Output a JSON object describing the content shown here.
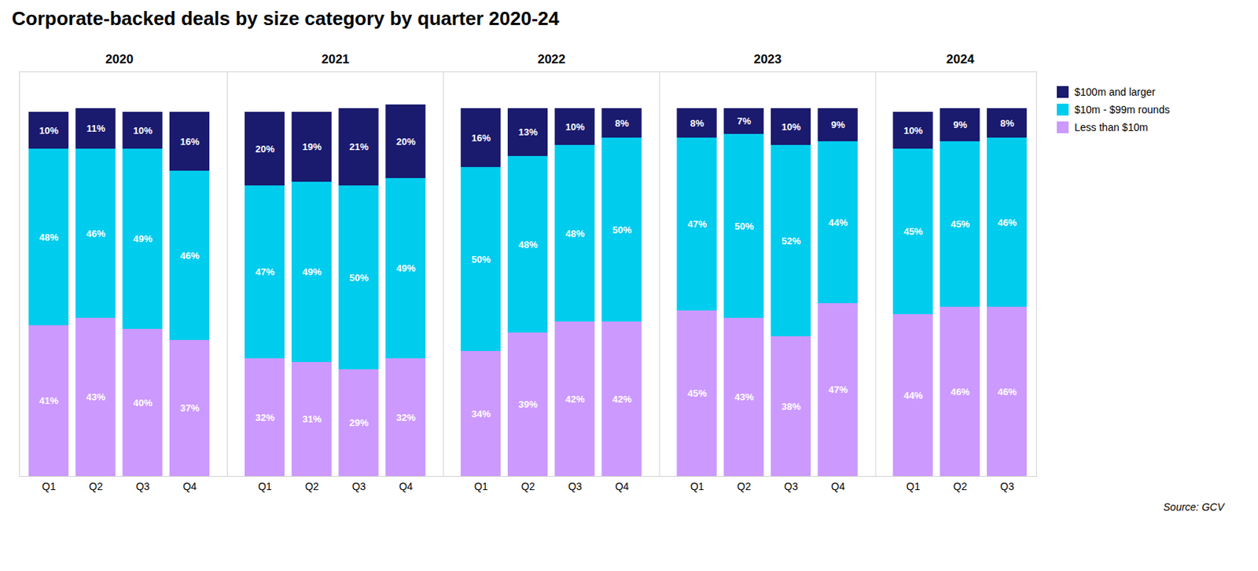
{
  "chart_data": {
    "type": "bar",
    "title": "Corporate-backed deals by size category by quarter 2020-24",
    "caption": "Source: GCV",
    "categories": [
      "Q1",
      "Q2",
      "Q3",
      "Q4",
      "Q1",
      "Q2",
      "Q3",
      "Q4",
      "Q1",
      "Q2",
      "Q3",
      "Q4",
      "Q1",
      "Q2",
      "Q3",
      "Q4",
      "Q1",
      "Q2",
      "Q3"
    ],
    "category_groups": [
      "2020",
      "2020",
      "2020",
      "2020",
      "2021",
      "2021",
      "2021",
      "2021",
      "2022",
      "2022",
      "2022",
      "2022",
      "2023",
      "2023",
      "2023",
      "2023",
      "2024",
      "2024",
      "2024"
    ],
    "series": [
      {
        "name": "Less than $10m",
        "color": "#cc99ff",
        "values": [
          41,
          43,
          40,
          37,
          32,
          31,
          29,
          32,
          34,
          39,
          42,
          42,
          45,
          43,
          38,
          47,
          44,
          46,
          46
        ],
        "value_labels": [
          "41%",
          "43%",
          "40%",
          "37%",
          "32%",
          "31%",
          "29%",
          "32%",
          "34%",
          "39%",
          "42%",
          "42%",
          "45%",
          "43%",
          "38%",
          "47%",
          "44%",
          "46%",
          "46%"
        ]
      },
      {
        "name": "$10m - $99m rounds",
        "color": "#00ccee",
        "values": [
          48,
          46,
          49,
          46,
          47,
          49,
          50,
          49,
          50,
          48,
          48,
          50,
          47,
          50,
          52,
          44,
          45,
          45,
          46
        ],
        "value_labels": [
          "48%",
          "46%",
          "49%",
          "46%",
          "47%",
          "49%",
          "50%",
          "49%",
          "50%",
          "48%",
          "48%",
          "50%",
          "47%",
          "50%",
          "52%",
          "44%",
          "45%",
          "45%",
          "46%"
        ]
      },
      {
        "name": "$100m and larger",
        "color": "#1a1a6e",
        "values": [
          10,
          11,
          10,
          16,
          20,
          19,
          21,
          20,
          16,
          13,
          10,
          8,
          8,
          7,
          10,
          9,
          10,
          9,
          8
        ],
        "value_labels": [
          "10%",
          "11%",
          "10%",
          "16%",
          "20%",
          "19%",
          "21%",
          "20%",
          "16%",
          "13%",
          "10%",
          "8%",
          "8%",
          "7%",
          "10%",
          "9%",
          "10%",
          "9%",
          "8%"
        ]
      }
    ],
    "ylim": [
      0,
      110
    ],
    "yticks": [],
    "stacked": true,
    "data_labels": true,
    "tick_labels": "x",
    "legend": "right",
    "grid": false
  }
}
